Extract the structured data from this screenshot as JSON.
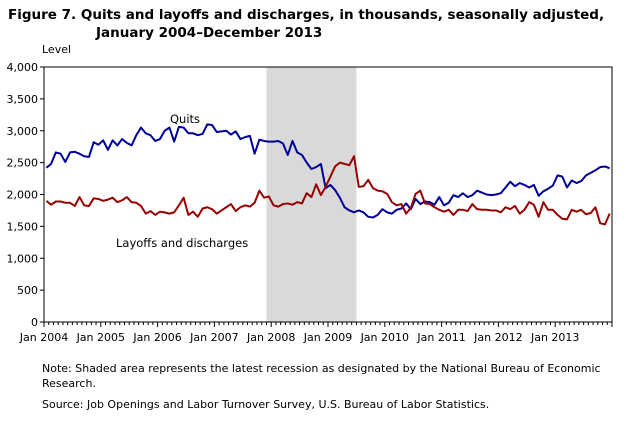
{
  "figure": {
    "title_line1": "Figure 7. Quits and layoffs and discharges, in thousands, seasonally adjusted,",
    "title_line2": "January 2004–December 2013",
    "note": "Note: Shaded area represents the latest recession as designated by the National Bureau of Economic Research.",
    "source": "Source: Job Openings and Labor Turnover Survey, U.S. Bureau of Labor Statistics."
  },
  "chart_data": {
    "type": "line",
    "ylabel": "Level",
    "ylim": [
      0,
      4000
    ],
    "y_ticks": [
      0,
      500,
      1000,
      1500,
      2000,
      2500,
      3000,
      3500,
      4000
    ],
    "y_tick_labels": [
      "0",
      "500",
      "1,000",
      "1,500",
      "2,000",
      "2,500",
      "3,000",
      "3,500",
      "4,000"
    ],
    "x_tick_labels": [
      "Jan 2004",
      "Jan 2005",
      "Jan 2006",
      "Jan 2007",
      "Jan 2008",
      "Jan 2009",
      "Jan 2010",
      "Jan 2011",
      "Jan 2012",
      "Jan 2013"
    ],
    "x_start": "Jan 2004",
    "x_end": "Dec 2013",
    "recession": {
      "start": "Dec 2007",
      "end": "Jun 2009",
      "color": "#d9d9d9"
    },
    "grid": false,
    "series": [
      {
        "name": "Quits",
        "color": "#000099",
        "values": [
          2420,
          2480,
          2660,
          2640,
          2510,
          2660,
          2670,
          2640,
          2600,
          2590,
          2820,
          2780,
          2850,
          2700,
          2850,
          2770,
          2870,
          2810,
          2770,
          2930,
          3050,
          2960,
          2930,
          2840,
          2870,
          3000,
          3050,
          2830,
          3060,
          3050,
          2960,
          2960,
          2930,
          2950,
          3100,
          3090,
          2980,
          2990,
          3000,
          2940,
          2990,
          2870,
          2900,
          2920,
          2640,
          2860,
          2840,
          2830,
          2830,
          2840,
          2800,
          2620,
          2840,
          2660,
          2620,
          2500,
          2400,
          2430,
          2480,
          2100,
          2150,
          2070,
          1950,
          1800,
          1750,
          1720,
          1750,
          1720,
          1650,
          1640,
          1680,
          1770,
          1720,
          1700,
          1760,
          1780,
          1860,
          1770,
          1930,
          1850,
          1890,
          1880,
          1840,
          1960,
          1830,
          1870,
          1990,
          1960,
          2020,
          1960,
          1990,
          2060,
          2030,
          2000,
          1990,
          2000,
          2020,
          2110,
          2200,
          2130,
          2180,
          2150,
          2110,
          2150,
          1980,
          2050,
          2090,
          2140,
          2300,
          2280,
          2110,
          2220,
          2180,
          2210,
          2300,
          2340,
          2380,
          2430,
          2440,
          2410
        ]
      },
      {
        "name": "Layoffs and discharges",
        "color": "#990000",
        "values": [
          1900,
          1840,
          1890,
          1890,
          1870,
          1870,
          1820,
          1960,
          1830,
          1820,
          1940,
          1930,
          1900,
          1920,
          1950,
          1880,
          1910,
          1960,
          1880,
          1870,
          1820,
          1700,
          1740,
          1680,
          1730,
          1720,
          1700,
          1720,
          1830,
          1950,
          1680,
          1730,
          1650,
          1780,
          1800,
          1770,
          1700,
          1750,
          1800,
          1850,
          1740,
          1800,
          1830,
          1810,
          1870,
          2060,
          1950,
          1970,
          1830,
          1810,
          1850,
          1860,
          1840,
          1880,
          1860,
          2020,
          1960,
          2160,
          1990,
          2120,
          2280,
          2440,
          2500,
          2480,
          2460,
          2600,
          2120,
          2130,
          2230,
          2100,
          2060,
          2050,
          2010,
          1880,
          1830,
          1850,
          1700,
          1790,
          2010,
          2060,
          1860,
          1850,
          1800,
          1760,
          1730,
          1760,
          1680,
          1760,
          1760,
          1740,
          1850,
          1770,
          1760,
          1760,
          1750,
          1750,
          1720,
          1800,
          1770,
          1820,
          1700,
          1760,
          1880,
          1840,
          1650,
          1880,
          1760,
          1760,
          1680,
          1620,
          1610,
          1760,
          1730,
          1760,
          1690,
          1710,
          1800,
          1550,
          1530,
          1700
        ]
      }
    ],
    "annotations": [
      {
        "text": "Quits"
      },
      {
        "text": "Layoffs and discharges"
      }
    ]
  }
}
